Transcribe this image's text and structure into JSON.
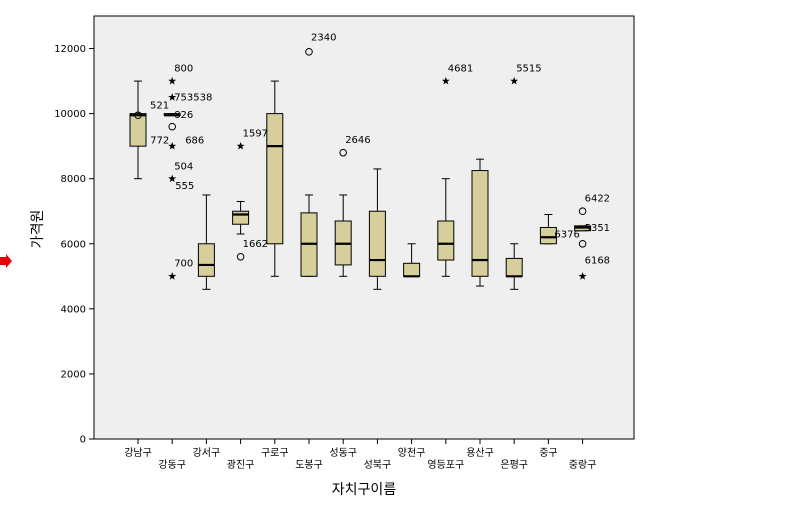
{
  "chart_data": {
    "type": "boxplot",
    "title": "",
    "xlabel": "자치구이름",
    "ylabel": "가격원",
    "ylim": [
      0,
      13000
    ],
    "yticks": [
      0,
      2000,
      4000,
      6000,
      8000,
      10000,
      12000
    ],
    "grid": false,
    "colors": {
      "plot_bg": "#efefef",
      "box_fill": "#d6cf9c",
      "marker": "#000000",
      "arrow": "#e8000b"
    },
    "categories": [
      {
        "name": "강남구",
        "label_row": 0,
        "min": 8000,
        "q1": 9000,
        "median": 9950,
        "q3": 10000,
        "max": 11000,
        "outliers": [
          {
            "value": 9950,
            "shape": "circle"
          }
        ]
      },
      {
        "name": "강동구",
        "label_row": 1,
        "min": 9950,
        "q1": 9950,
        "median": 9950,
        "q3": 10000,
        "max": 10000,
        "outliers": [
          {
            "value": 11000,
            "shape": "star"
          },
          {
            "value": 10500,
            "shape": "star"
          },
          {
            "value": 9600,
            "shape": "circle"
          },
          {
            "value": 9000,
            "shape": "star"
          },
          {
            "value": 8000,
            "shape": "star"
          },
          {
            "value": 5000,
            "shape": "star"
          }
        ]
      },
      {
        "name": "강서구",
        "label_row": 0,
        "min": 4600,
        "q1": 5000,
        "median": 5350,
        "q3": 6000,
        "max": 7500,
        "outliers": []
      },
      {
        "name": "광진구",
        "label_row": 1,
        "min": 6300,
        "q1": 6600,
        "median": 6900,
        "q3": 7000,
        "max": 7300,
        "outliers": [
          {
            "value": 9000,
            "shape": "star"
          },
          {
            "value": 5600,
            "shape": "circle"
          }
        ]
      },
      {
        "name": "구로구",
        "label_row": 0,
        "min": 5000,
        "q1": 6000,
        "median": 9000,
        "q3": 10000,
        "max": 11000,
        "outliers": []
      },
      {
        "name": "도봉구",
        "label_row": 1,
        "min": 5000,
        "q1": 5000,
        "median": 6000,
        "q3": 6950,
        "max": 7500,
        "outliers": [
          {
            "value": 11900,
            "shape": "circle"
          }
        ]
      },
      {
        "name": "성동구",
        "label_row": 0,
        "min": 5000,
        "q1": 5350,
        "median": 6000,
        "q3": 6700,
        "max": 7500,
        "outliers": [
          {
            "value": 8800,
            "shape": "circle"
          }
        ]
      },
      {
        "name": "성북구",
        "label_row": 1,
        "min": 4600,
        "q1": 5000,
        "median": 5500,
        "q3": 7000,
        "max": 8300,
        "outliers": []
      },
      {
        "name": "양천구",
        "label_row": 0,
        "min": 5000,
        "q1": 5000,
        "median": 5000,
        "q3": 5400,
        "max": 6000,
        "outliers": []
      },
      {
        "name": "영등포구",
        "label_row": 1,
        "min": 5000,
        "q1": 5500,
        "median": 6000,
        "q3": 6700,
        "max": 8000,
        "outliers": [
          {
            "value": 11000,
            "shape": "star"
          }
        ]
      },
      {
        "name": "용산구",
        "label_row": 0,
        "min": 4700,
        "q1": 5000,
        "median": 5500,
        "q3": 8250,
        "max": 8600,
        "outliers": []
      },
      {
        "name": "은평구",
        "label_row": 1,
        "min": 4600,
        "q1": 5000,
        "median": 5000,
        "q3": 5550,
        "max": 6000,
        "outliers": [
          {
            "value": 11000,
            "shape": "star"
          }
        ]
      },
      {
        "name": "중구",
        "label_row": 0,
        "min": 6000,
        "q1": 6000,
        "median": 6200,
        "q3": 6500,
        "max": 6900,
        "outliers": []
      },
      {
        "name": "중랑구",
        "label_row": 1,
        "min": 6400,
        "q1": 6400,
        "median": 6500,
        "q3": 6550,
        "max": 6550,
        "outliers": [
          {
            "value": 7000,
            "shape": "circle"
          },
          {
            "value": 6000,
            "shape": "circle"
          },
          {
            "value": 5000,
            "shape": "star"
          }
        ]
      }
    ],
    "annotations": [
      {
        "text": "521",
        "cat": 0,
        "y": 10150,
        "dx": 12,
        "anchor": "start"
      },
      {
        "text": "800",
        "cat": 1,
        "y": 11300,
        "dx": 2,
        "anchor": "start"
      },
      {
        "text": "753538",
        "cat": 1,
        "y": 10400,
        "dx": 2,
        "anchor": "start"
      },
      {
        "text": "826",
        "cat": 1,
        "y": 9860,
        "dx": 2,
        "anchor": "start"
      },
      {
        "text": "772",
        "cat": 1,
        "y": 9080,
        "dx": -22,
        "anchor": "start"
      },
      {
        "text": "686",
        "cat": 1,
        "y": 9080,
        "dx": 13,
        "anchor": "start"
      },
      {
        "text": "504",
        "cat": 1,
        "y": 8280,
        "dx": 2,
        "anchor": "start"
      },
      {
        "text": "555",
        "cat": 1,
        "y": 7680,
        "dx": 3,
        "anchor": "start"
      },
      {
        "text": "700",
        "cat": 1,
        "y": 5300,
        "dx": 2,
        "anchor": "start"
      },
      {
        "text": "1597",
        "cat": 3,
        "y": 9300,
        "dx": 2,
        "anchor": "start"
      },
      {
        "text": "1662",
        "cat": 3,
        "y": 5900,
        "dx": 2,
        "anchor": "start"
      },
      {
        "text": "2340",
        "cat": 5,
        "y": 12250,
        "dx": 2,
        "anchor": "start"
      },
      {
        "text": "2646",
        "cat": 6,
        "y": 9100,
        "dx": 2,
        "anchor": "start"
      },
      {
        "text": "4681",
        "cat": 9,
        "y": 11300,
        "dx": 2,
        "anchor": "start"
      },
      {
        "text": "5515",
        "cat": 11,
        "y": 11300,
        "dx": 2,
        "anchor": "start"
      },
      {
        "text": "6376",
        "cat": 12,
        "y": 6200,
        "dx": 6,
        "anchor": "start"
      },
      {
        "text": "6422",
        "cat": 13,
        "y": 7300,
        "dx": 2,
        "anchor": "start"
      },
      {
        "text": "5351",
        "cat": 13,
        "y": 6400,
        "dx": 2,
        "anchor": "start"
      },
      {
        "text": "6168",
        "cat": 13,
        "y": 5400,
        "dx": 2,
        "anchor": "start"
      }
    ]
  }
}
